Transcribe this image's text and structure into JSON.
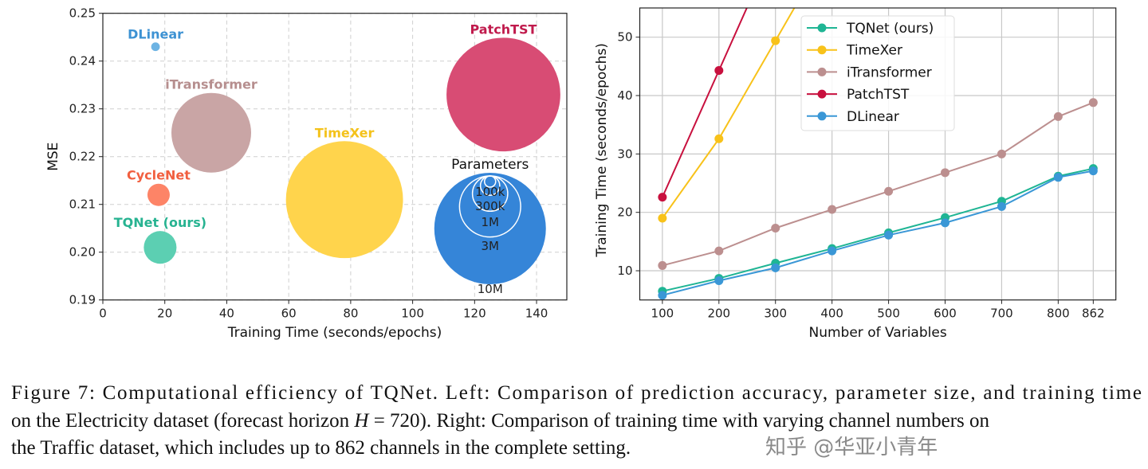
{
  "chart_data": [
    {
      "type": "scatter",
      "subtype": "bubble",
      "xlabel": "Training Time (seconds/epochs)",
      "ylabel": "MSE",
      "xlim": [
        0,
        150
      ],
      "ylim": [
        0.19,
        0.25
      ],
      "xticks": [
        "0",
        "20",
        "40",
        "60",
        "80",
        "100",
        "120",
        "140"
      ],
      "yticks": [
        "0.19",
        "0.20",
        "0.21",
        "0.22",
        "0.23",
        "0.24",
        "0.25"
      ],
      "grid": true,
      "points": [
        {
          "name": "DLinear",
          "x": 17,
          "y": 0.243,
          "params_approx": 60000,
          "color": "#6db3e3",
          "label_color": "#3d92d3"
        },
        {
          "name": "iTransformer",
          "x": 35,
          "y": 0.225,
          "params_approx": 5100000,
          "color": "#c9a5a5",
          "label_color": "#b68e8e"
        },
        {
          "name": "CycleNet",
          "x": 18,
          "y": 0.212,
          "params_approx": 400000,
          "color": "#fd8467",
          "label_color": "#f15f3f"
        },
        {
          "name": "TQNet (ours)",
          "x": 18.5,
          "y": 0.201,
          "params_approx": 860000,
          "color": "#5ccfb2",
          "label_color": "#27b391"
        },
        {
          "name": "TimeXer",
          "x": 78,
          "y": 0.211,
          "params_approx": 11000000,
          "color": "#ffd44c",
          "label_color": "#f4c21a"
        },
        {
          "name": "PatchTST",
          "x": 129.3,
          "y": 0.233,
          "params_approx": 10400000,
          "color": "#d84c74",
          "label_color": "#c01a4c"
        }
      ],
      "size_legend": {
        "title": "Parameters",
        "color": "#3585d8",
        "entries": [
          {
            "label": "100k",
            "params": 100000
          },
          {
            "label": "300k",
            "params": 300000
          },
          {
            "label": "1M",
            "params": 1000000
          },
          {
            "label": "3M",
            "params": 3000000
          },
          {
            "label": "10M",
            "params": 10000000
          }
        ]
      }
    },
    {
      "type": "line",
      "xlabel": "Number of Variables",
      "ylabel": "Training Time (seconds/epochs)",
      "x": [
        100,
        200,
        300,
        400,
        500,
        600,
        700,
        800,
        862
      ],
      "xticks": [
        "100",
        "200",
        "300",
        "400",
        "500",
        "600",
        "700",
        "800",
        "862"
      ],
      "yticks": [
        "10",
        "20",
        "30",
        "40",
        "50"
      ],
      "ylim": [
        5,
        55
      ],
      "xlim": [
        60,
        902
      ],
      "grid": true,
      "legend_position": "top-center",
      "series": [
        {
          "name": "TQNet (ours)",
          "color": "#1fb594",
          "values": [
            6.5,
            8.7,
            11.3,
            13.8,
            16.5,
            19.1,
            21.9,
            26.2,
            27.5
          ]
        },
        {
          "name": "TimeXer",
          "color": "#f8c21a",
          "values": [
            19.0,
            32.6,
            49.4,
            null,
            null,
            null,
            null,
            null,
            null
          ]
        },
        {
          "name": "iTransformer",
          "color": "#bc8f8f",
          "values": [
            10.9,
            13.4,
            17.3,
            20.5,
            23.6,
            26.8,
            30.0,
            36.4,
            38.8
          ]
        },
        {
          "name": "PatchTST",
          "color": "#c8103e",
          "values": [
            22.6,
            44.3,
            null,
            null,
            null,
            null,
            null,
            null,
            null
          ]
        },
        {
          "name": "DLinear",
          "color": "#3a97d6",
          "values": [
            5.8,
            8.3,
            10.5,
            13.4,
            16.1,
            18.2,
            21.0,
            26.0,
            27.1
          ]
        }
      ]
    }
  ],
  "caption": {
    "line1": "Figure 7: Computational efficiency of TQNet. Left: Comparison of prediction accuracy, parameter size, and training time",
    "line2_a": "on the Electricity dataset (forecast horizon ",
    "line2_var": "H",
    "line2_b": " = 720). Right: Comparison of training time with varying channel numbers on",
    "line3": "the Traffic dataset, which includes up to 862 channels in the complete setting."
  },
  "watermark": "知乎 @华亚小青年"
}
